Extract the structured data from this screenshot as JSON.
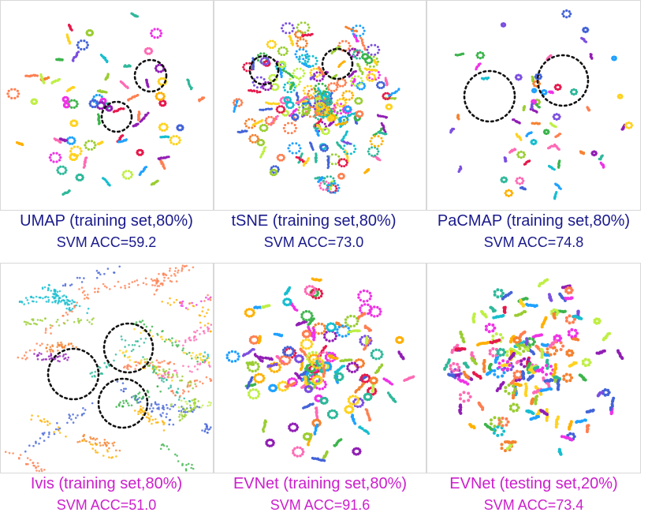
{
  "colors": {
    "top_caption": "#1a1a8c",
    "bottom_caption": "#cc1fcc",
    "circle": "#111111",
    "palette": [
      "#e6194b",
      "#f58231",
      "#ffb000",
      "#ffd21f",
      "#3cb44b",
      "#2eb89a",
      "#17becf",
      "#4363d8",
      "#7b4fe0",
      "#911eb4",
      "#f032e6",
      "#ff69b4",
      "#9acd32",
      "#bfef45",
      "#1fa1ff",
      "#ff7f50"
    ]
  },
  "chart_data": [
    {
      "type": "scatter",
      "method": "UMAP",
      "title": "UMAP (training set,80%)",
      "acc_text": "SVM ACC=59.2",
      "svm_acc": 59.2,
      "subset": "training set",
      "subset_percent": 80,
      "layout_style": "sparse",
      "highlight_circles": 2
    },
    {
      "type": "scatter",
      "method": "tSNE",
      "title": "tSNE (training set,80%)",
      "acc_text": "SVM ACC=73.0",
      "svm_acc": 73.0,
      "subset": "training set",
      "subset_percent": 80,
      "layout_style": "dense-blob",
      "highlight_circles": 2
    },
    {
      "type": "scatter",
      "method": "PaCMAP",
      "title": "PaCMAP (training set,80%)",
      "acc_text": "SVM ACC=74.8",
      "svm_acc": 74.8,
      "subset": "training set",
      "subset_percent": 80,
      "layout_style": "sparse",
      "highlight_circles": 2
    },
    {
      "type": "scatter",
      "method": "Ivis",
      "title": "Ivis (training set,80%)",
      "acc_text": "SVM ACC=51.0",
      "svm_acc": 51.0,
      "subset": "training set",
      "subset_percent": 80,
      "layout_style": "diffuse",
      "highlight_circles": 3
    },
    {
      "type": "scatter",
      "method": "EVNet",
      "title": "EVNet (training set,80%)",
      "acc_text": "SVM ACC=91.6",
      "svm_acc": 91.6,
      "subset": "training set",
      "subset_percent": 80,
      "layout_style": "separated-rings",
      "highlight_circles": 0
    },
    {
      "type": "scatter",
      "method": "EVNet",
      "title": "EVNet (testing set,20%)",
      "acc_text": "SVM ACC=73.4",
      "svm_acc": 73.4,
      "subset": "testing set",
      "subset_percent": 20,
      "layout_style": "separated-clumps",
      "highlight_circles": 0
    }
  ]
}
